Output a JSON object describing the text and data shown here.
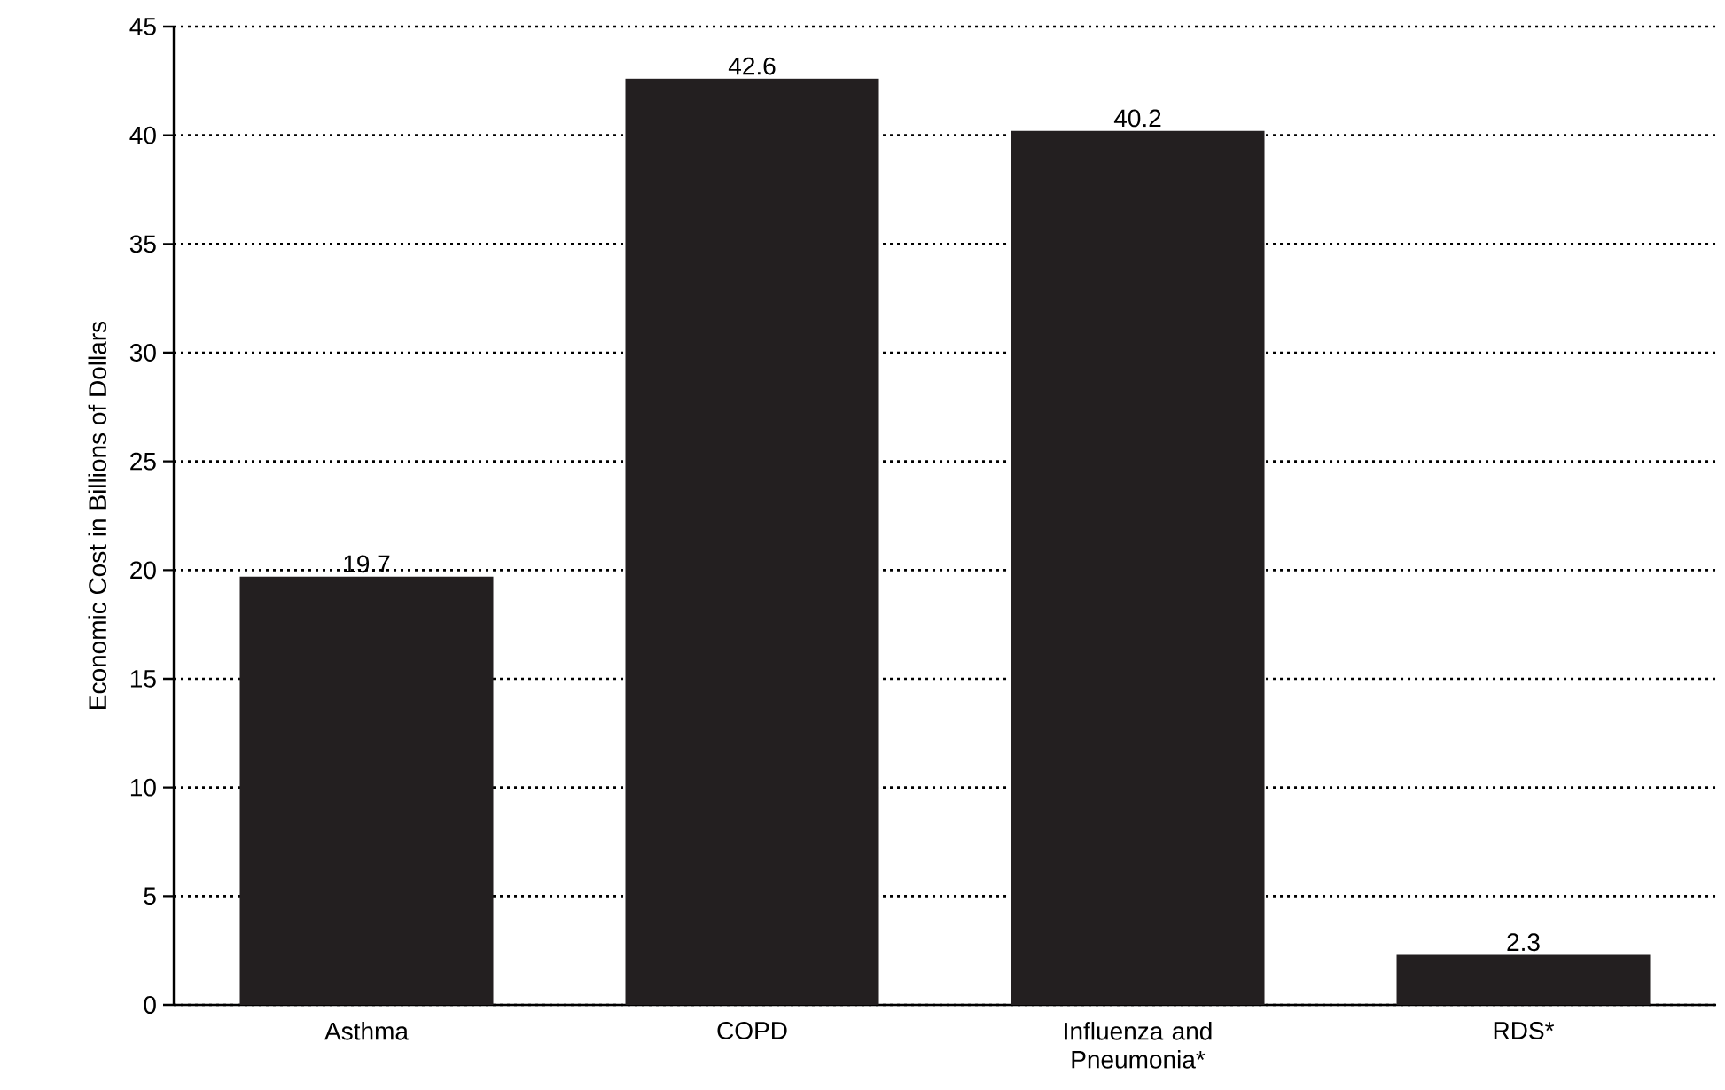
{
  "chart_data": {
    "type": "bar",
    "ylabel": "Economic Cost in Billions of Dollars",
    "categories": [
      "Asthma",
      "COPD",
      "Influenza and Pneumonia*",
      "RDS*"
    ],
    "values": [
      19.7,
      42.6,
      40.2,
      2.3
    ],
    "color": "#231f20",
    "ylim": [
      0,
      45
    ],
    "yticks": [
      0,
      5,
      10,
      15,
      20,
      25,
      30,
      35,
      40,
      45
    ],
    "grid": "y",
    "data_labels": true
  }
}
